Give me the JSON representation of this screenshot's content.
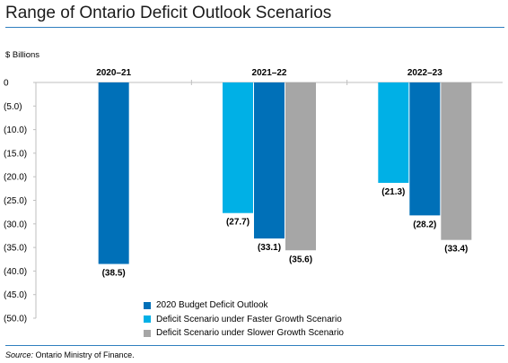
{
  "page": {
    "title": "Range of Ontario Deficit Outlook Scenarios",
    "unit_label": "$ Billions",
    "source_prefix": "Source:",
    "source_text": " Ontario Ministry of Finance."
  },
  "chart_data": {
    "type": "bar",
    "title": "",
    "xlabel": "",
    "ylabel": "",
    "categories": [
      "2020–21",
      "2021–22",
      "2022–23"
    ],
    "ylim": [
      -50,
      0
    ],
    "yticks": [
      0,
      -5,
      -10,
      -15,
      -20,
      -25,
      -30,
      -35,
      -40,
      -45,
      -50
    ],
    "ytick_labels": [
      "0",
      "(5.0)",
      "(10.0)",
      "(15.0)",
      "(20.0)",
      "(25.0)",
      "(30.0)",
      "(35.0)",
      "(40.0)",
      "(45.0)",
      "(50.0)"
    ],
    "series": [
      {
        "name": "Deficit Scenario under Faster Growth Scenario",
        "color": "#00b0e6",
        "values": [
          null,
          -27.7,
          -21.3
        ],
        "labels": [
          null,
          "(27.7)",
          "(21.3)"
        ]
      },
      {
        "name": "2020 Budget Deficit Outlook",
        "color": "#0070b8",
        "values": [
          -38.5,
          -33.1,
          -28.2
        ],
        "labels": [
          "(38.5)",
          "(33.1)",
          "(28.2)"
        ]
      },
      {
        "name": "Deficit Scenario under Slower Growth Scenario",
        "color": "#a6a6a6",
        "values": [
          null,
          -35.6,
          -33.4
        ],
        "labels": [
          null,
          "(35.6)",
          "(33.4)"
        ]
      }
    ],
    "legend_order": [
      1,
      0,
      2
    ],
    "legend_position": "bottom-center",
    "grid": false
  }
}
